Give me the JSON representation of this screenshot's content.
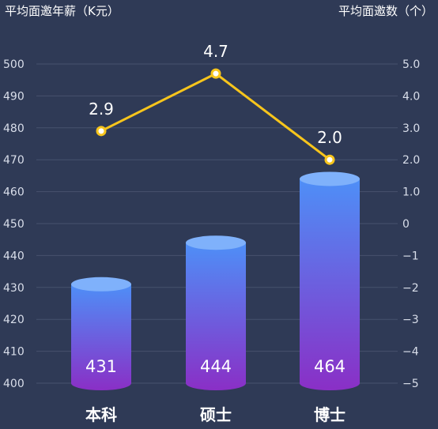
{
  "chart_data": {
    "type": "bar+line",
    "categories": [
      "本科",
      "硕士",
      "博士"
    ],
    "left_axis": {
      "label": "平均面邀年薪（K元）",
      "range": [
        400,
        500
      ],
      "ticks": [
        "400",
        "410",
        "420",
        "430",
        "440",
        "450",
        "460",
        "470",
        "480",
        "490",
        "500"
      ]
    },
    "right_axis": {
      "label": "平均面邀数（个）",
      "range": [
        -5,
        5
      ],
      "ticks": [
        "−5",
        "−4",
        "−3",
        "−2",
        "−1",
        "0",
        "1.0",
        "2.0",
        "3.0",
        "4.0",
        "5.0"
      ]
    },
    "bar_series": {
      "values": [
        431,
        444,
        464
      ],
      "labels": [
        "431",
        "444",
        "464"
      ]
    },
    "line_series": {
      "values": [
        2.9,
        4.7,
        2.0
      ],
      "labels": [
        "2.9",
        "4.7",
        "2.0"
      ]
    },
    "grid": true,
    "colors": {
      "background": "#2f3a56",
      "bar_top": "#4e8ff7",
      "bar_bottom": "#8a2fc6",
      "line": "#f7c51c"
    }
  }
}
